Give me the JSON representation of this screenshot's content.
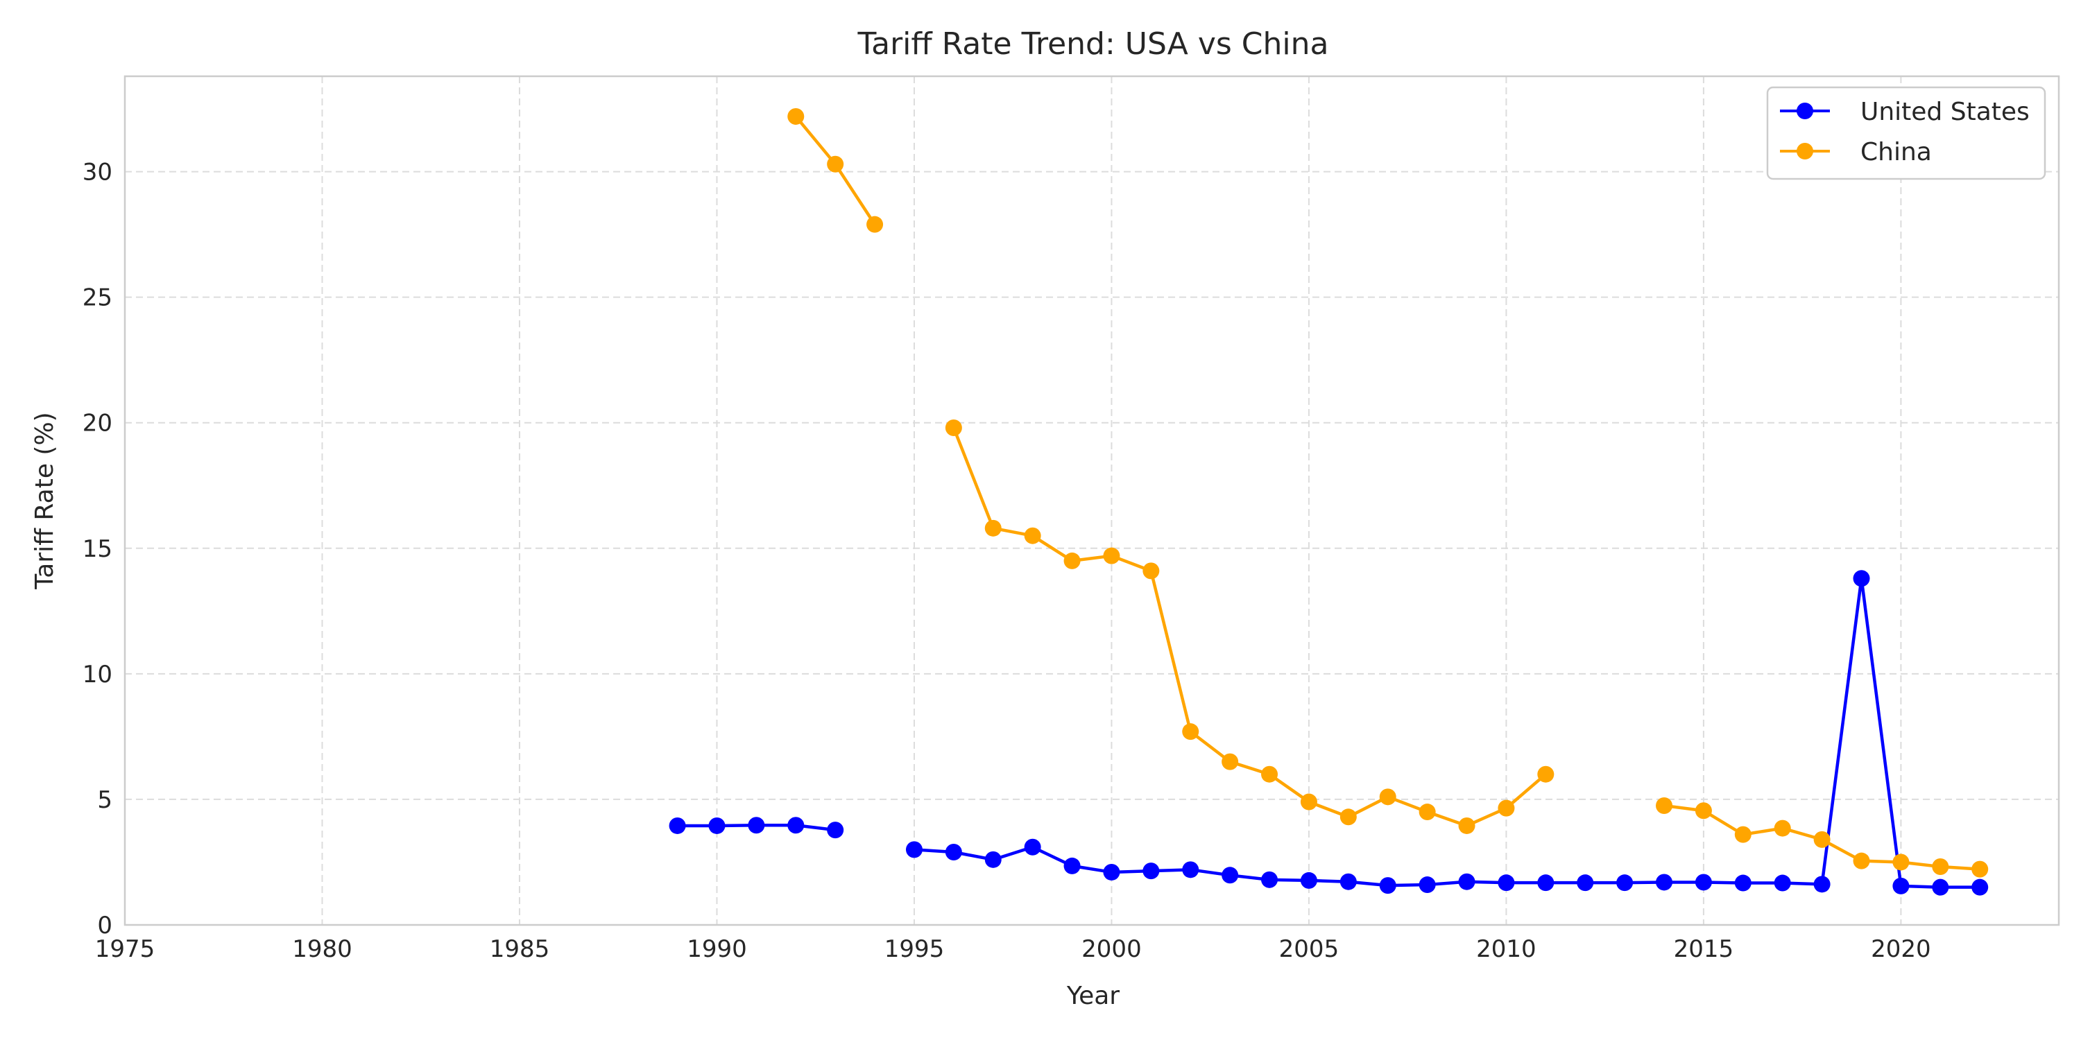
{
  "chart_data": {
    "type": "line",
    "title": "Tariff Rate Trend: USA vs China",
    "xlabel": "Year",
    "ylabel": "Tariff Rate (%)",
    "xlim": [
      1975,
      2024
    ],
    "ylim": [
      0,
      33.8
    ],
    "xticks": [
      1975,
      1980,
      1985,
      1990,
      1995,
      2000,
      2005,
      2010,
      2015,
      2020
    ],
    "yticks": [
      0,
      5,
      10,
      15,
      20,
      25,
      30
    ],
    "grid": true,
    "legend_position": "top-right",
    "series": [
      {
        "name": "United States",
        "color": "#0000ff",
        "marker": "circle",
        "points": [
          [
            1989,
            3.95
          ],
          [
            1990,
            3.95
          ],
          [
            1991,
            3.97
          ],
          [
            1992,
            3.97
          ],
          [
            1993,
            3.78
          ],
          [
            1994,
            null
          ],
          [
            1995,
            3.0
          ],
          [
            1996,
            2.9
          ],
          [
            1997,
            2.6
          ],
          [
            1998,
            3.1
          ],
          [
            1999,
            2.35
          ],
          [
            2000,
            2.1
          ],
          [
            2001,
            2.15
          ],
          [
            2002,
            2.2
          ],
          [
            2003,
            1.98
          ],
          [
            2004,
            1.8
          ],
          [
            2005,
            1.77
          ],
          [
            2006,
            1.72
          ],
          [
            2007,
            1.57
          ],
          [
            2008,
            1.6
          ],
          [
            2009,
            1.72
          ],
          [
            2010,
            1.68
          ],
          [
            2011,
            1.68
          ],
          [
            2012,
            1.68
          ],
          [
            2013,
            1.68
          ],
          [
            2014,
            1.7
          ],
          [
            2015,
            1.7
          ],
          [
            2016,
            1.67
          ],
          [
            2017,
            1.67
          ],
          [
            2018,
            1.62
          ],
          [
            2019,
            13.8
          ],
          [
            2020,
            1.55
          ],
          [
            2021,
            1.5
          ],
          [
            2022,
            1.5
          ]
        ]
      },
      {
        "name": "China",
        "color": "#ffa500",
        "marker": "circle",
        "points": [
          [
            1992,
            32.2
          ],
          [
            1993,
            30.3
          ],
          [
            1994,
            27.9
          ],
          [
            1995,
            null
          ],
          [
            1996,
            19.8
          ],
          [
            1997,
            15.8
          ],
          [
            1998,
            15.5
          ],
          [
            1999,
            14.5
          ],
          [
            2000,
            14.7
          ],
          [
            2001,
            14.1
          ],
          [
            2002,
            7.7
          ],
          [
            2003,
            6.5
          ],
          [
            2004,
            6.0
          ],
          [
            2005,
            4.9
          ],
          [
            2006,
            4.3
          ],
          [
            2007,
            5.1
          ],
          [
            2008,
            4.5
          ],
          [
            2009,
            3.95
          ],
          [
            2010,
            4.65
          ],
          [
            2011,
            6.0
          ],
          [
            2012,
            null
          ],
          [
            2013,
            null
          ],
          [
            2014,
            4.75
          ],
          [
            2015,
            4.55
          ],
          [
            2016,
            3.6
          ],
          [
            2017,
            3.85
          ],
          [
            2018,
            3.4
          ],
          [
            2019,
            2.55
          ],
          [
            2020,
            2.5
          ],
          [
            2021,
            2.32
          ],
          [
            2022,
            2.22
          ]
        ]
      }
    ]
  }
}
